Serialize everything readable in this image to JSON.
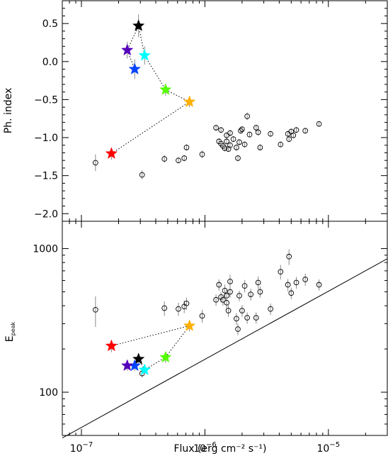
{
  "chart_data": [
    {
      "type": "scatter",
      "panel": "top",
      "ylabel": "Ph. index",
      "xscale": "log",
      "xlim": [
        7e-08,
        3e-05
      ],
      "ylim": [
        -2.1,
        0.8
      ],
      "yticks": [
        {
          "value": 0.5,
          "label": "0.5"
        },
        {
          "value": 0.0,
          "label": "0.0"
        },
        {
          "value": -0.5,
          "label": "−0.5"
        },
        {
          "value": -1.0,
          "label": "−1.0"
        },
        {
          "value": -1.5,
          "label": "−1.5"
        },
        {
          "value": -2.0,
          "label": "−2.0"
        }
      ],
      "series": [
        {
          "marker": "open-circle",
          "points": [
            {
              "x": 1.3e-07,
              "y": -1.33,
              "ey": 0.11
            },
            {
              "x": 3.1e-07,
              "y": -1.49,
              "ey": 0.06
            },
            {
              "x": 4.7e-07,
              "y": -1.28,
              "ey": 0.05
            },
            {
              "x": 6.1e-07,
              "y": -1.3,
              "ey": 0.04
            },
            {
              "x": 6.8e-07,
              "y": -1.27,
              "ey": 0.04
            },
            {
              "x": 7.1e-07,
              "y": -1.13,
              "ey": 0.04
            },
            {
              "x": 9.5e-07,
              "y": -1.22,
              "ey": 0.05
            },
            {
              "x": 1.23e-06,
              "y": -0.87,
              "ey": 0.04
            },
            {
              "x": 1.3e-06,
              "y": -1.05,
              "ey": 0.04
            },
            {
              "x": 1.35e-06,
              "y": -1.08,
              "ey": 0.04
            },
            {
              "x": 1.35e-06,
              "y": -0.9,
              "ey": 0.04
            },
            {
              "x": 1.4e-06,
              "y": -1.11,
              "ey": 0.04
            },
            {
              "x": 1.45e-06,
              "y": -1.14,
              "ey": 0.04
            },
            {
              "x": 1.5e-06,
              "y": -1.05,
              "ey": 0.04
            },
            {
              "x": 1.5e-06,
              "y": -0.97,
              "ey": 0.04
            },
            {
              "x": 1.55e-06,
              "y": -1.15,
              "ey": 0.04
            },
            {
              "x": 1.6e-06,
              "y": -0.94,
              "ey": 0.04
            },
            {
              "x": 1.6e-06,
              "y": -1.1,
              "ey": 0.04
            },
            {
              "x": 1.7e-06,
              "y": -1.02,
              "ey": 0.04
            },
            {
              "x": 1.8e-06,
              "y": -1.13,
              "ey": 0.04
            },
            {
              "x": 1.85e-06,
              "y": -1.27,
              "ey": 0.04
            },
            {
              "x": 1.9e-06,
              "y": -1.06,
              "ey": 0.04
            },
            {
              "x": 1.95e-06,
              "y": -0.91,
              "ey": 0.04
            },
            {
              "x": 2e-06,
              "y": -0.89,
              "ey": 0.04
            },
            {
              "x": 2.1e-06,
              "y": -1.09,
              "ey": 0.04
            },
            {
              "x": 2.2e-06,
              "y": -0.72,
              "ey": 0.05
            },
            {
              "x": 2.3e-06,
              "y": -0.96,
              "ey": 0.04
            },
            {
              "x": 2.6e-06,
              "y": -0.87,
              "ey": 0.04
            },
            {
              "x": 2.7e-06,
              "y": -0.93,
              "ey": 0.04
            },
            {
              "x": 2.8e-06,
              "y": -1.13,
              "ey": 0.04
            },
            {
              "x": 3.4e-06,
              "y": -0.95,
              "ey": 0.04
            },
            {
              "x": 4.1e-06,
              "y": -1.09,
              "ey": 0.04
            },
            {
              "x": 4.7e-06,
              "y": -0.95,
              "ey": 0.04
            },
            {
              "x": 4.8e-06,
              "y": -1.02,
              "ey": 0.04
            },
            {
              "x": 5e-06,
              "y": -0.92,
              "ey": 0.04
            },
            {
              "x": 5.2e-06,
              "y": -0.97,
              "ey": 0.04
            },
            {
              "x": 5.5e-06,
              "y": -0.9,
              "ey": 0.04
            },
            {
              "x": 6.5e-06,
              "y": -0.91,
              "ey": 0.04
            },
            {
              "x": 8.4e-06,
              "y": -0.82,
              "ey": 0.03
            }
          ]
        },
        {
          "marker": "star",
          "connected": true,
          "points": [
            {
              "x": 1.75e-07,
              "y": -1.21,
              "ey": 0.08,
              "color": "#ff0000"
            },
            {
              "x": 7.5e-07,
              "y": -0.53,
              "ey": 0.07,
              "color": "#ffb000"
            },
            {
              "x": 4.8e-07,
              "y": -0.37,
              "ey": 0.08,
              "color": "#55ff00"
            },
            {
              "x": 3.25e-07,
              "y": 0.08,
              "ey": 0.12,
              "color": "#00ffff"
            },
            {
              "x": 2.9e-07,
              "y": 0.47,
              "ey": 0.15,
              "color": "#000000"
            },
            {
              "x": 2.35e-07,
              "y": 0.15,
              "ey": 0.11,
              "color": "#5500bb"
            },
            {
              "x": 2.7e-07,
              "y": -0.1,
              "ey": 0.13,
              "color": "#0044ff"
            }
          ]
        }
      ]
    },
    {
      "type": "scatter",
      "panel": "bottom",
      "xlabel": "Flux (erg cm⁻² s⁻¹)",
      "ylabel_main": "E",
      "ylabel_sub": "peak",
      "xscale": "log",
      "yscale": "log",
      "xlim": [
        7e-08,
        3e-05
      ],
      "ylim": [
        50,
        1550
      ],
      "xticks": [
        {
          "value": 1e-07,
          "base": "10",
          "exp": "−7"
        },
        {
          "value": 1e-06,
          "base": "10",
          "exp": "−6"
        },
        {
          "value": 1e-05,
          "base": "10",
          "exp": "−5"
        }
      ],
      "yticks": [
        {
          "value": 100,
          "label": "100"
        },
        {
          "value": 1000,
          "label": "1000"
        }
      ],
      "line": {
        "x": [
          7e-08,
          3e-05
        ],
        "y": [
          48,
          850
        ]
      },
      "series": [
        {
          "marker": "open-circle",
          "points": [
            {
              "x": 1.3e-07,
              "y": 375,
              "ey": 90
            },
            {
              "x": 3.1e-07,
              "y": 135,
              "ey": 8
            },
            {
              "x": 4.7e-07,
              "y": 385,
              "ey": 45
            },
            {
              "x": 6.1e-07,
              "y": 380,
              "ey": 40
            },
            {
              "x": 6.8e-07,
              "y": 395,
              "ey": 40
            },
            {
              "x": 7.1e-07,
              "y": 415,
              "ey": 40
            },
            {
              "x": 9.5e-07,
              "y": 340,
              "ey": 35
            },
            {
              "x": 1.23e-06,
              "y": 440,
              "ey": 40
            },
            {
              "x": 1.3e-06,
              "y": 560,
              "ey": 50
            },
            {
              "x": 1.35e-06,
              "y": 460,
              "ey": 40
            },
            {
              "x": 1.4e-06,
              "y": 440,
              "ey": 40
            },
            {
              "x": 1.45e-06,
              "y": 510,
              "ey": 50
            },
            {
              "x": 1.5e-06,
              "y": 470,
              "ey": 45
            },
            {
              "x": 1.5e-06,
              "y": 420,
              "ey": 40
            },
            {
              "x": 1.55e-06,
              "y": 370,
              "ey": 35
            },
            {
              "x": 1.6e-06,
              "y": 590,
              "ey": 70
            },
            {
              "x": 1.6e-06,
              "y": 500,
              "ey": 45
            },
            {
              "x": 1.8e-06,
              "y": 325,
              "ey": 30
            },
            {
              "x": 1.85e-06,
              "y": 275,
              "ey": 25
            },
            {
              "x": 1.9e-06,
              "y": 470,
              "ey": 40
            },
            {
              "x": 2e-06,
              "y": 370,
              "ey": 35
            },
            {
              "x": 2.1e-06,
              "y": 550,
              "ey": 55
            },
            {
              "x": 2.2e-06,
              "y": 330,
              "ey": 30
            },
            {
              "x": 2.35e-06,
              "y": 480,
              "ey": 45
            },
            {
              "x": 2.6e-06,
              "y": 330,
              "ey": 30
            },
            {
              "x": 2.7e-06,
              "y": 580,
              "ey": 60
            },
            {
              "x": 2.8e-06,
              "y": 500,
              "ey": 45
            },
            {
              "x": 3.4e-06,
              "y": 380,
              "ey": 35
            },
            {
              "x": 4.1e-06,
              "y": 690,
              "ey": 80
            },
            {
              "x": 4.7e-06,
              "y": 560,
              "ey": 55
            },
            {
              "x": 4.8e-06,
              "y": 880,
              "ey": 110
            },
            {
              "x": 5e-06,
              "y": 490,
              "ey": 45
            },
            {
              "x": 5.5e-06,
              "y": 580,
              "ey": 55
            },
            {
              "x": 6.5e-06,
              "y": 610,
              "ey": 60
            },
            {
              "x": 8.4e-06,
              "y": 560,
              "ey": 50
            }
          ]
        },
        {
          "marker": "star",
          "connected": true,
          "points": [
            {
              "x": 1.75e-07,
              "y": 210,
              "ey": 20,
              "color": "#ff0000"
            },
            {
              "x": 7.5e-07,
              "y": 290,
              "ey": 25,
              "color": "#ffb000"
            },
            {
              "x": 4.8e-07,
              "y": 175,
              "ey": 15,
              "color": "#55ff00"
            },
            {
              "x": 3.25e-07,
              "y": 143,
              "ey": 10,
              "color": "#00ffff"
            },
            {
              "x": 2.9e-07,
              "y": 170,
              "ey": 15,
              "color": "#000000"
            },
            {
              "x": 2.7e-07,
              "y": 153,
              "ey": 12,
              "color": "#0044ff"
            },
            {
              "x": 2.35e-07,
              "y": 153,
              "ey": 12,
              "color": "#5500bb"
            }
          ]
        }
      ]
    }
  ]
}
